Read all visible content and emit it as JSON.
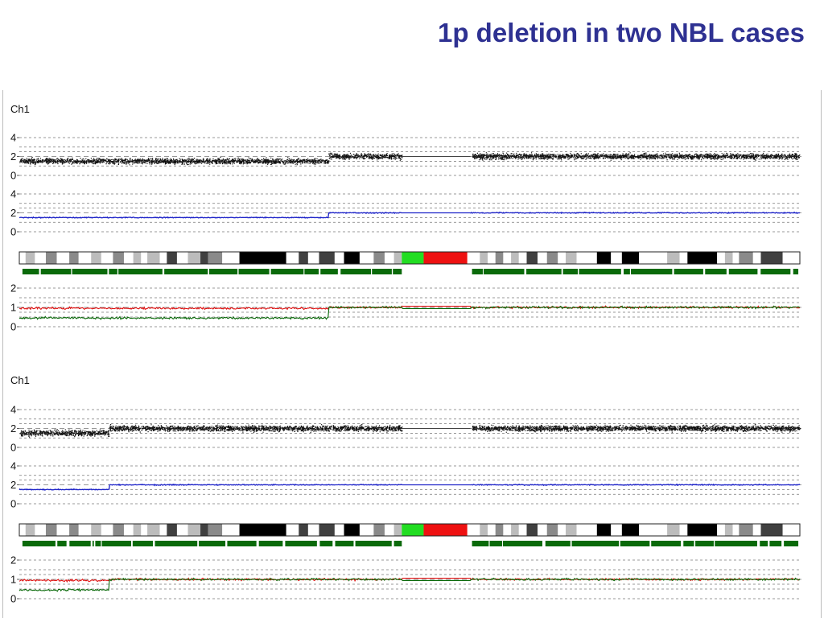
{
  "title": "1p deletion in two NBL cases",
  "colors": {
    "title": "#2e3192",
    "raw_points": "#111111",
    "smoothed_copy_number": "#1c22c8",
    "allele_a": "#e01010",
    "allele_b": "#0a6a0a",
    "centromere_p": "#22dd22",
    "centromere_q": "#ee1111",
    "snp_coverage": "#0a6a0a"
  },
  "chart_data": [
    {
      "type": "scatter",
      "panel_label": "Ch1",
      "tracks": {
        "raw_copy_number": {
          "ylim": [
            0,
            4
          ],
          "yticks": [
            "0",
            "2",
            "4"
          ],
          "segments": [
            {
              "x": [
                0,
                0.396
              ],
              "level": 1.5
            },
            {
              "x": [
                0.396,
                0.49
              ],
              "level": 2.0
            },
            {
              "x": [
                0.58,
                1.0
              ],
              "level": 2.0
            }
          ]
        },
        "smoothed_copy_number": {
          "ylim": [
            0,
            4
          ],
          "yticks": [
            "0",
            "2",
            "4"
          ],
          "segments": [
            {
              "x": [
                0,
                0.396
              ],
              "level": 1.5
            },
            {
              "x": [
                0.396,
                1.0
              ],
              "level": 2.0
            }
          ]
        },
        "allele_specific_copy_number": {
          "ylim": [
            0,
            2
          ],
          "yticks": [
            "0",
            "1",
            "2"
          ],
          "series": [
            {
              "segments": [
                {
                  "x": [
                    0,
                    0.396
                  ],
                  "level": 0.95
                },
                {
                  "x": [
                    0.396,
                    1.0
                  ],
                  "level": 1.0
                }
              ]
            },
            {
              "segments": [
                {
                  "x": [
                    0,
                    0.396
                  ],
                  "level": 0.45
                },
                {
                  "x": [
                    0.396,
                    1.0
                  ],
                  "level": 1.0
                }
              ]
            }
          ]
        }
      }
    },
    {
      "type": "scatter",
      "panel_label": "Ch1",
      "tracks": {
        "raw_copy_number": {
          "ylim": [
            0,
            4
          ],
          "yticks": [
            "0",
            "2",
            "4"
          ],
          "segments": [
            {
              "x": [
                0,
                0.115
              ],
              "level": 1.5
            },
            {
              "x": [
                0.115,
                0.49
              ],
              "level": 2.0
            },
            {
              "x": [
                0.58,
                1.0
              ],
              "level": 2.0
            }
          ]
        },
        "smoothed_copy_number": {
          "ylim": [
            0,
            4
          ],
          "yticks": [
            "0",
            "2",
            "4"
          ],
          "segments": [
            {
              "x": [
                0,
                0.115
              ],
              "level": 1.5
            },
            {
              "x": [
                0.115,
                1.0
              ],
              "level": 2.0
            }
          ]
        },
        "allele_specific_copy_number": {
          "ylim": [
            0,
            2
          ],
          "yticks": [
            "0",
            "1",
            "2"
          ],
          "series": [
            {
              "segments": [
                {
                  "x": [
                    0,
                    0.115
                  ],
                  "level": 0.95
                },
                {
                  "x": [
                    0.115,
                    1.0
                  ],
                  "level": 1.0
                }
              ]
            },
            {
              "segments": [
                {
                  "x": [
                    0,
                    0.115
                  ],
                  "level": 0.45
                },
                {
                  "x": [
                    0.115,
                    1.0
                  ],
                  "level": 1.0
                }
              ]
            }
          ]
        }
      }
    }
  ],
  "ideogram": {
    "bands": [
      {
        "s": 0,
        "e": 0.008,
        "c": "#ffffff"
      },
      {
        "s": 0.008,
        "e": 0.02,
        "c": "#bcbcbc"
      },
      {
        "s": 0.02,
        "e": 0.034,
        "c": "#ffffff"
      },
      {
        "s": 0.034,
        "e": 0.048,
        "c": "#8a8a8a"
      },
      {
        "s": 0.048,
        "e": 0.064,
        "c": "#ffffff"
      },
      {
        "s": 0.064,
        "e": 0.076,
        "c": "#8a8a8a"
      },
      {
        "s": 0.076,
        "e": 0.092,
        "c": "#ffffff"
      },
      {
        "s": 0.092,
        "e": 0.105,
        "c": "#bcbcbc"
      },
      {
        "s": 0.105,
        "e": 0.12,
        "c": "#ffffff"
      },
      {
        "s": 0.12,
        "e": 0.134,
        "c": "#8a8a8a"
      },
      {
        "s": 0.134,
        "e": 0.146,
        "c": "#ffffff"
      },
      {
        "s": 0.146,
        "e": 0.156,
        "c": "#bcbcbc"
      },
      {
        "s": 0.156,
        "e": 0.164,
        "c": "#ffffff"
      },
      {
        "s": 0.164,
        "e": 0.18,
        "c": "#bcbcbc"
      },
      {
        "s": 0.18,
        "e": 0.189,
        "c": "#ffffff"
      },
      {
        "s": 0.189,
        "e": 0.202,
        "c": "#404040"
      },
      {
        "s": 0.202,
        "e": 0.216,
        "c": "#ffffff"
      },
      {
        "s": 0.216,
        "e": 0.232,
        "c": "#bcbcbc"
      },
      {
        "s": 0.232,
        "e": 0.242,
        "c": "#404040"
      },
      {
        "s": 0.242,
        "e": 0.26,
        "c": "#8a8a8a"
      },
      {
        "s": 0.26,
        "e": 0.282,
        "c": "#ffffff"
      },
      {
        "s": 0.282,
        "e": 0.342,
        "c": "#000000"
      },
      {
        "s": 0.342,
        "e": 0.358,
        "c": "#ffffff"
      },
      {
        "s": 0.358,
        "e": 0.37,
        "c": "#404040"
      },
      {
        "s": 0.37,
        "e": 0.384,
        "c": "#ffffff"
      },
      {
        "s": 0.384,
        "e": 0.404,
        "c": "#404040"
      },
      {
        "s": 0.404,
        "e": 0.416,
        "c": "#ffffff"
      },
      {
        "s": 0.416,
        "e": 0.436,
        "c": "#000000"
      },
      {
        "s": 0.436,
        "e": 0.454,
        "c": "#ffffff"
      },
      {
        "s": 0.454,
        "e": 0.468,
        "c": "#8a8a8a"
      },
      {
        "s": 0.468,
        "e": 0.48,
        "c": "#ffffff"
      },
      {
        "s": 0.48,
        "e": 0.49,
        "c": "#bcbcbc"
      },
      {
        "s": 0.49,
        "e": 0.518,
        "c": "#22dd22"
      },
      {
        "s": 0.518,
        "e": 0.574,
        "c": "#ee1111"
      },
      {
        "s": 0.574,
        "e": 0.59,
        "c": "#ffffff"
      },
      {
        "s": 0.59,
        "e": 0.6,
        "c": "#bcbcbc"
      },
      {
        "s": 0.6,
        "e": 0.61,
        "c": "#ffffff"
      },
      {
        "s": 0.61,
        "e": 0.62,
        "c": "#8a8a8a"
      },
      {
        "s": 0.62,
        "e": 0.63,
        "c": "#ffffff"
      },
      {
        "s": 0.63,
        "e": 0.64,
        "c": "#bcbcbc"
      },
      {
        "s": 0.64,
        "e": 0.65,
        "c": "#ffffff"
      },
      {
        "s": 0.65,
        "e": 0.664,
        "c": "#404040"
      },
      {
        "s": 0.664,
        "e": 0.676,
        "c": "#ffffff"
      },
      {
        "s": 0.676,
        "e": 0.69,
        "c": "#8a8a8a"
      },
      {
        "s": 0.69,
        "e": 0.7,
        "c": "#ffffff"
      },
      {
        "s": 0.7,
        "e": 0.714,
        "c": "#bcbcbc"
      },
      {
        "s": 0.714,
        "e": 0.74,
        "c": "#ffffff"
      },
      {
        "s": 0.74,
        "e": 0.758,
        "c": "#000000"
      },
      {
        "s": 0.758,
        "e": 0.772,
        "c": "#ffffff"
      },
      {
        "s": 0.772,
        "e": 0.794,
        "c": "#000000"
      },
      {
        "s": 0.794,
        "e": 0.83,
        "c": "#ffffff"
      },
      {
        "s": 0.83,
        "e": 0.846,
        "c": "#bcbcbc"
      },
      {
        "s": 0.846,
        "e": 0.856,
        "c": "#ffffff"
      },
      {
        "s": 0.856,
        "e": 0.894,
        "c": "#000000"
      },
      {
        "s": 0.894,
        "e": 0.904,
        "c": "#ffffff"
      },
      {
        "s": 0.904,
        "e": 0.914,
        "c": "#bcbcbc"
      },
      {
        "s": 0.914,
        "e": 0.922,
        "c": "#ffffff"
      },
      {
        "s": 0.922,
        "e": 0.94,
        "c": "#8a8a8a"
      },
      {
        "s": 0.94,
        "e": 0.95,
        "c": "#ffffff"
      },
      {
        "s": 0.95,
        "e": 0.978,
        "c": "#404040"
      },
      {
        "s": 0.978,
        "e": 1.0,
        "c": "#ffffff"
      }
    ],
    "coverage_gap": [
      0.49,
      0.578
    ]
  }
}
